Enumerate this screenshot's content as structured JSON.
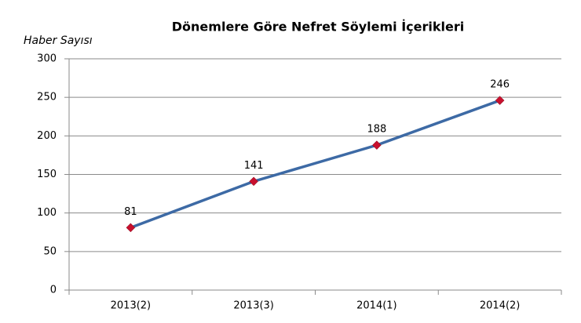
{
  "chart_data": {
    "type": "line",
    "title": "Dönemlere Göre Nefret Söylemi İçerikleri",
    "y_label": "Haber Sayısı",
    "categories": [
      "2013(2)",
      "2013(3)",
      "2014(1)",
      "2014(2)"
    ],
    "values": [
      81,
      141,
      188,
      246
    ],
    "color": "#3d6aa5",
    "marker_color": "#c8102e",
    "ylim": [
      0,
      300
    ],
    "yticks": [
      0,
      50,
      100,
      150,
      200,
      250,
      300
    ],
    "grid": true,
    "data_labels": true
  }
}
